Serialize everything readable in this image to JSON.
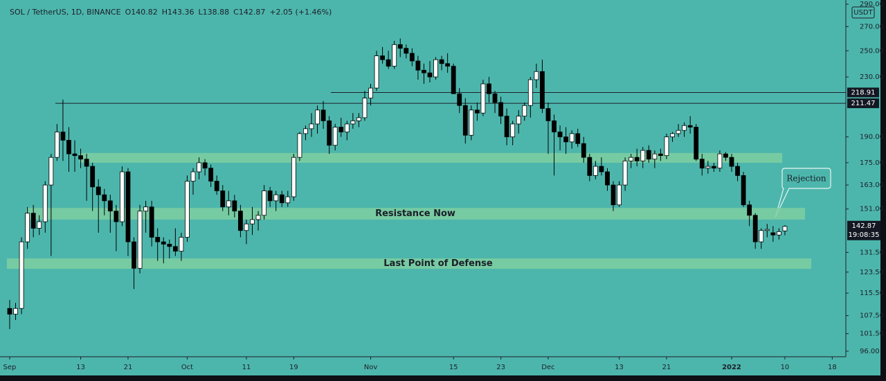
{
  "chart_data": {
    "type": "candlestick",
    "header": {
      "symbol": "SOL / TetherUS, 1D, BINANCE",
      "ohlc_prefixes": [
        "O",
        "H",
        "L",
        "C"
      ],
      "change": "+2.05 (+1.46%)"
    },
    "currency": "USDT",
    "countdown": "19:08:35",
    "log_scale": true,
    "up_color": "#ffffff",
    "down_color": "#000000",
    "background": "#4db6ac",
    "zone_color": "#7fcfa0",
    "x": [
      0,
      1,
      2,
      3,
      4,
      5,
      6,
      7,
      8,
      9,
      10,
      11,
      12,
      13,
      14,
      15,
      16,
      17,
      18,
      19,
      20,
      21,
      22,
      23,
      24,
      25,
      26,
      27,
      28,
      29,
      30,
      31,
      32,
      33,
      34,
      35,
      36,
      37,
      38,
      39,
      40,
      41,
      42,
      43,
      44,
      45,
      46,
      47,
      48,
      49,
      50,
      51,
      52,
      53,
      54,
      55,
      56,
      57,
      58,
      59,
      60,
      61,
      62,
      63,
      64,
      65,
      66,
      67,
      68,
      69,
      70,
      71,
      72,
      73,
      74,
      75,
      76,
      77,
      78,
      79,
      80,
      81,
      82,
      83,
      84,
      85,
      86,
      87,
      88,
      89,
      90,
      91,
      92,
      93,
      94,
      95,
      96,
      97,
      98,
      99,
      100,
      101,
      102,
      103,
      104,
      105,
      106,
      107,
      108,
      109,
      110,
      111,
      112,
      113,
      114,
      115,
      116,
      117,
      118,
      119,
      120,
      121,
      122,
      123,
      124,
      125,
      126,
      127,
      128,
      129,
      130,
      131
    ],
    "open": [
      110,
      108,
      110,
      136,
      149,
      142,
      145,
      163,
      178,
      193,
      188,
      180,
      179,
      177,
      173,
      162,
      158,
      155,
      150,
      145,
      170,
      136,
      125,
      150,
      152,
      138,
      136,
      135,
      134,
      132,
      138,
      165,
      170,
      175,
      172,
      165,
      160,
      152,
      155,
      150,
      141,
      144,
      146,
      148,
      160,
      155,
      158,
      154,
      157,
      178,
      192,
      195,
      198,
      207,
      200,
      185,
      196,
      193,
      198,
      200,
      202,
      215,
      222,
      246,
      243,
      238,
      255,
      252,
      248,
      242,
      235,
      233,
      230,
      243,
      240,
      238,
      218,
      210,
      191,
      207,
      205,
      225,
      218,
      212,
      203,
      190,
      198,
      203,
      210,
      228,
      234,
      208,
      200,
      193,
      190,
      187,
      192,
      186,
      178,
      168,
      173,
      170,
      163,
      153,
      163,
      176,
      178,
      176,
      182,
      177,
      180,
      179,
      190,
      192,
      194,
      197,
      196,
      177,
      172,
      173,
      172,
      180,
      178,
      173,
      168,
      153,
      148,
      136,
      141,
      140,
      139,
      140.82
    ],
    "high": [
      113,
      112,
      138,
      152,
      153,
      148,
      165,
      180,
      198,
      214,
      196,
      188,
      183,
      180,
      175,
      166,
      161,
      158,
      153,
      173,
      172,
      138,
      153,
      155,
      155,
      142,
      138,
      137,
      142,
      140,
      168,
      172,
      178,
      177,
      174,
      168,
      163,
      160,
      158,
      153,
      146,
      152,
      150,
      163,
      162,
      160,
      160,
      160,
      180,
      193,
      197,
      205,
      210,
      213,
      203,
      198,
      202,
      200,
      205,
      205,
      220,
      225,
      250,
      253,
      250,
      258,
      260,
      255,
      252,
      246,
      240,
      242,
      245,
      246,
      248,
      240,
      222,
      215,
      210,
      212,
      228,
      230,
      220,
      216,
      208,
      200,
      207,
      212,
      230,
      240,
      243,
      212,
      204,
      197,
      196,
      194,
      195,
      190,
      180,
      176,
      178,
      172,
      165,
      165,
      178,
      180,
      183,
      184,
      185,
      182,
      183,
      192,
      193,
      198,
      199,
      203,
      198,
      180,
      176,
      175,
      182,
      181,
      180,
      175,
      170,
      155,
      149,
      142,
      144,
      143,
      142,
      143.36
    ],
    "low": [
      103,
      106,
      108,
      133,
      138,
      139,
      140,
      130,
      176,
      176,
      170,
      170,
      172,
      155,
      150,
      140,
      148,
      140,
      132,
      143,
      130,
      117,
      123,
      140,
      134,
      128,
      127,
      129,
      130,
      128,
      136,
      158,
      166,
      168,
      162,
      158,
      150,
      148,
      147,
      138,
      135,
      139,
      141,
      146,
      152,
      150,
      152,
      152,
      155,
      176,
      188,
      190,
      192,
      195,
      180,
      182,
      190,
      188,
      195,
      196,
      200,
      210,
      220,
      240,
      236,
      236,
      245,
      244,
      238,
      228,
      225,
      226,
      228,
      235,
      233,
      218,
      205,
      186,
      188,
      200,
      203,
      212,
      205,
      198,
      185,
      185,
      192,
      200,
      202,
      222,
      205,
      180,
      168,
      182,
      180,
      183,
      184,
      175,
      165,
      166,
      168,
      160,
      150,
      152,
      160,
      172,
      173,
      172,
      175,
      172,
      176,
      177,
      187,
      190,
      190,
      192,
      176,
      168,
      169,
      170,
      170,
      176,
      170,
      165,
      152,
      143,
      133,
      133,
      138,
      136,
      137,
      138.88
    ],
    "close": [
      108,
      110,
      136,
      149,
      142,
      145,
      163,
      178,
      193,
      188,
      180,
      179,
      177,
      173,
      162,
      158,
      155,
      150,
      145,
      170,
      136,
      125,
      150,
      152,
      138,
      136,
      135,
      134,
      132,
      138,
      165,
      170,
      175,
      172,
      165,
      160,
      152,
      155,
      150,
      141,
      144,
      146,
      148,
      160,
      155,
      158,
      154,
      157,
      178,
      192,
      195,
      198,
      207,
      200,
      185,
      196,
      193,
      198,
      200,
      202,
      215,
      222,
      246,
      243,
      238,
      255,
      252,
      248,
      242,
      235,
      233,
      230,
      243,
      240,
      238,
      218,
      210,
      191,
      207,
      205,
      225,
      218,
      212,
      203,
      190,
      198,
      203,
      210,
      228,
      234,
      208,
      200,
      193,
      190,
      187,
      192,
      186,
      178,
      168,
      173,
      170,
      163,
      153,
      163,
      176,
      178,
      176,
      182,
      177,
      180,
      179,
      190,
      192,
      194,
      197,
      196,
      177,
      172,
      173,
      172,
      180,
      178,
      173,
      168,
      153,
      148,
      136,
      141,
      141.5,
      139,
      140.5,
      142.87
    ],
    "xlim": [
      -0.7,
      141.3
    ],
    "xticks": [
      {
        "value": 0,
        "label": "Sep"
      },
      {
        "value": 12,
        "label": "13"
      },
      {
        "value": 20,
        "label": "21"
      },
      {
        "value": 30,
        "label": "Oct"
      },
      {
        "value": 40,
        "label": "11"
      },
      {
        "value": 48,
        "label": "19"
      },
      {
        "value": 61,
        "label": "Nov"
      },
      {
        "value": 75,
        "label": "15"
      },
      {
        "value": 83,
        "label": "23"
      },
      {
        "value": 91,
        "label": "Dec"
      },
      {
        "value": 103,
        "label": "13"
      },
      {
        "value": 111,
        "label": "21"
      },
      {
        "value": 122,
        "label": "2022"
      },
      {
        "value": 131,
        "label": "10"
      },
      {
        "value": 139,
        "label": "18"
      }
    ],
    "ylim": [
      94.3,
      293.9
    ],
    "yticks": [
      {
        "value": 290,
        "label": "290.00"
      },
      {
        "value": 270,
        "label": "270.00"
      },
      {
        "value": 250,
        "label": "250.00"
      },
      {
        "value": 230,
        "label": "230.00"
      },
      {
        "value": 190,
        "label": "190.00"
      },
      {
        "value": 175,
        "label": "175.00"
      },
      {
        "value": 163,
        "label": "163.00"
      },
      {
        "value": 151,
        "label": "151.00"
      },
      {
        "value": 131.5,
        "label": "131.50"
      },
      {
        "value": 123.5,
        "label": "123.50"
      },
      {
        "value": 115.5,
        "label": "115.50"
      },
      {
        "value": 107.5,
        "label": "107.50"
      },
      {
        "value": 101.5,
        "label": "101.50"
      },
      {
        "value": 96,
        "label": "96.00"
      }
    ],
    "levels": [
      218.91,
      211.47
    ],
    "zones": [
      {
        "low": 175,
        "high": 180.5
      },
      {
        "low": 146,
        "high": 151.5,
        "label": "Resistance Now"
      },
      {
        "low": 124.8,
        "high": 129,
        "label": "Last Point of Defense"
      }
    ],
    "annotation": "Rejection"
  }
}
